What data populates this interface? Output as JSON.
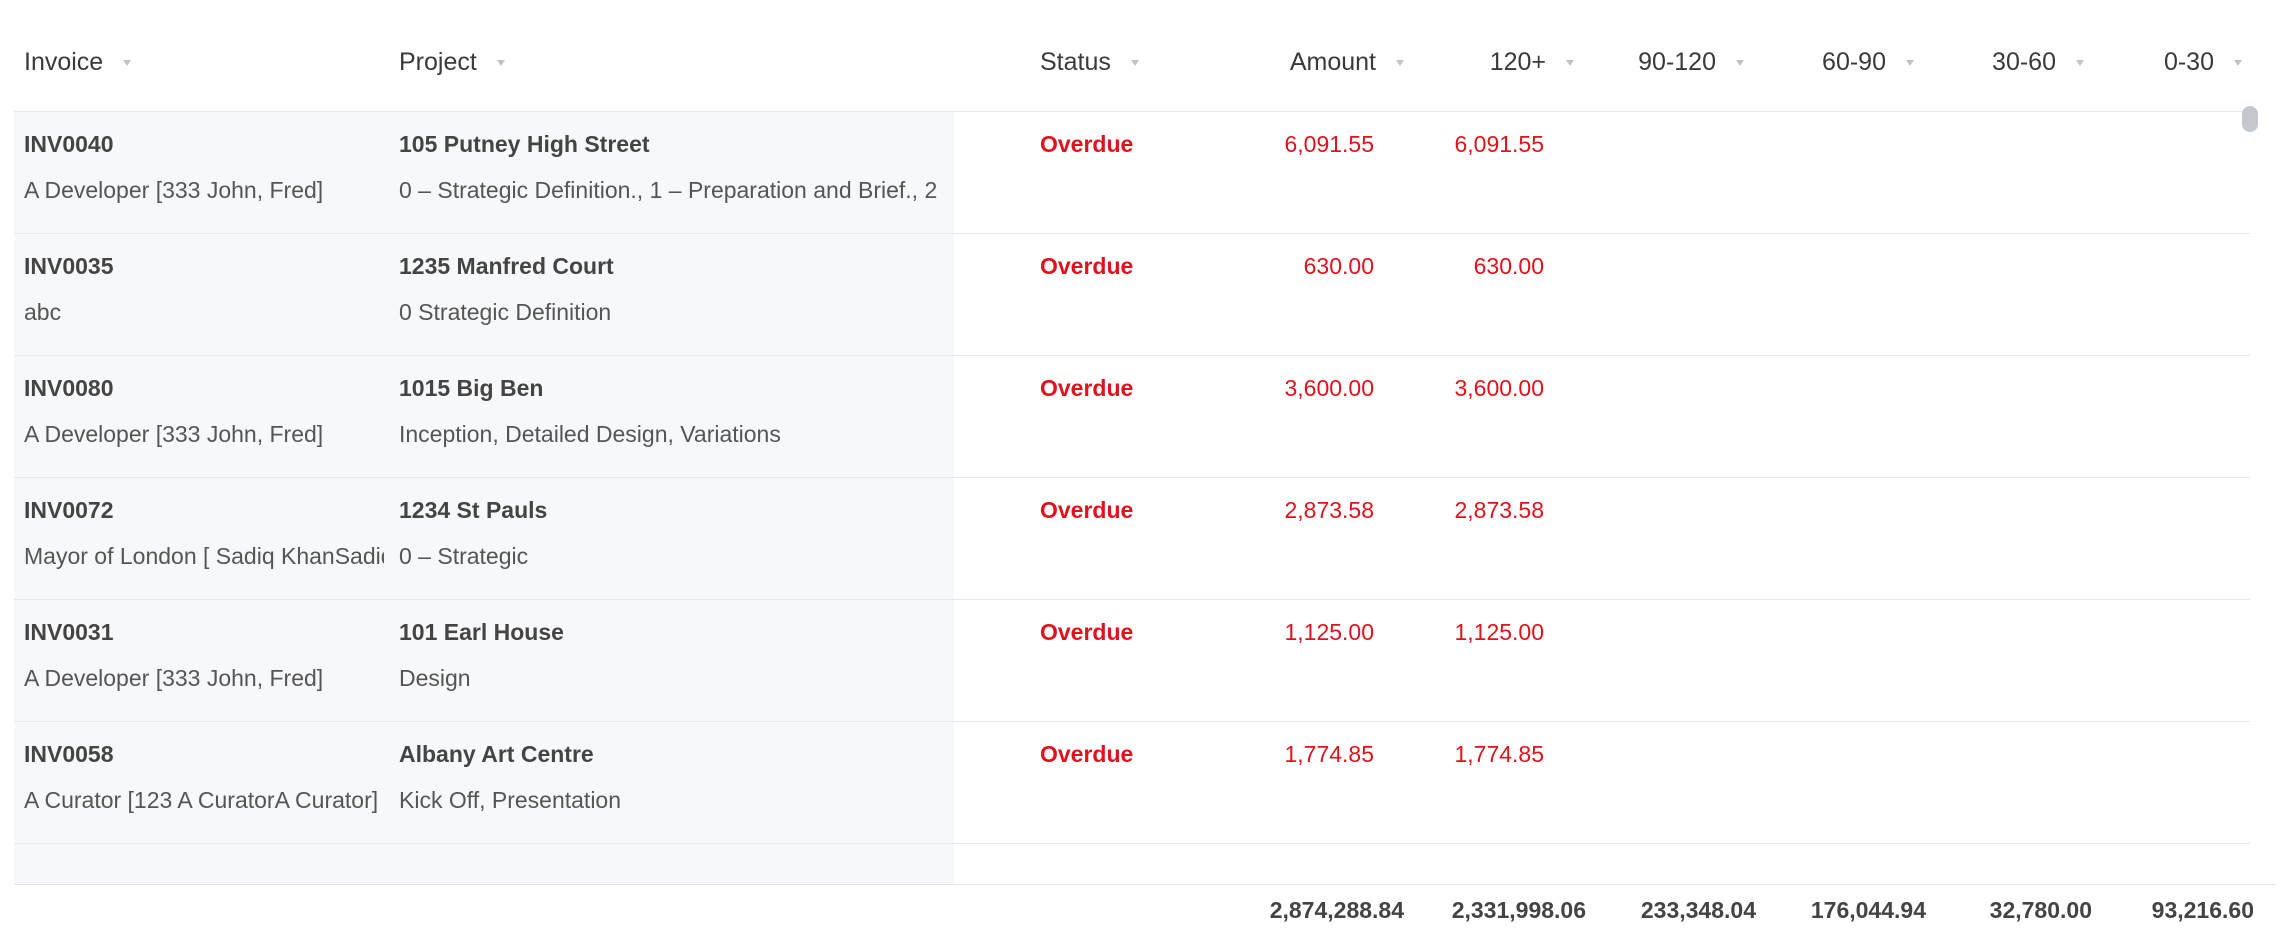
{
  "columns": {
    "invoice": "Invoice",
    "project": "Project",
    "status": "Status",
    "amount": "Amount",
    "b120": "120+",
    "b90_120": "90-120",
    "b60_90": "60-90",
    "b30_60": "30-60",
    "b0_30": "0-30"
  },
  "rows": [
    {
      "invoice": "INV0040",
      "client": "A Developer [333 John, Fred]",
      "project": "105 Putney High Street",
      "stages": "0 – Strategic Definition., 1 – Preparation and Brief., 2",
      "status": "Overdue",
      "amount": "6,091.55",
      "b120": "6,091.55"
    },
    {
      "invoice": "INV0035",
      "client": "abc",
      "project": "1235 Manfred Court",
      "stages": "0 Strategic Definition",
      "status": "Overdue",
      "amount": "630.00",
      "b120": "630.00"
    },
    {
      "invoice": "INV0080",
      "client": "A Developer [333 John, Fred]",
      "project": "1015 Big Ben",
      "stages": "Inception, Detailed Design, Variations",
      "status": "Overdue",
      "amount": "3,600.00",
      "b120": "3,600.00"
    },
    {
      "invoice": "INV0072",
      "client": "Mayor of London [ Sadiq KhanSadiq Khan]",
      "project": "1234 St Pauls",
      "stages": "0 – Strategic",
      "status": "Overdue",
      "amount": "2,873.58",
      "b120": "2,873.58"
    },
    {
      "invoice": "INV0031",
      "client": "A Developer [333 John, Fred]",
      "project": "101 Earl House",
      "stages": "Design",
      "status": "Overdue",
      "amount": "1,125.00",
      "b120": "1,125.00"
    },
    {
      "invoice": "INV0058",
      "client": "A Curator [123 A CuratorA Curator]",
      "project": "Albany Art Centre",
      "stages": "Kick Off, Presentation",
      "status": "Overdue",
      "amount": "1,774.85",
      "b120": "1,774.85"
    }
  ],
  "totals": {
    "amount": "2,874,288.84",
    "b120": "2,331,998.06",
    "b90_120": "233,348.04",
    "b60_90": "176,044.94",
    "b30_60": "32,780.00",
    "b0_30": "93,216.60"
  },
  "colors": {
    "overdue": "#e0121b",
    "row_shade": "#f7f8fa",
    "divider": "#e6e8ec"
  }
}
